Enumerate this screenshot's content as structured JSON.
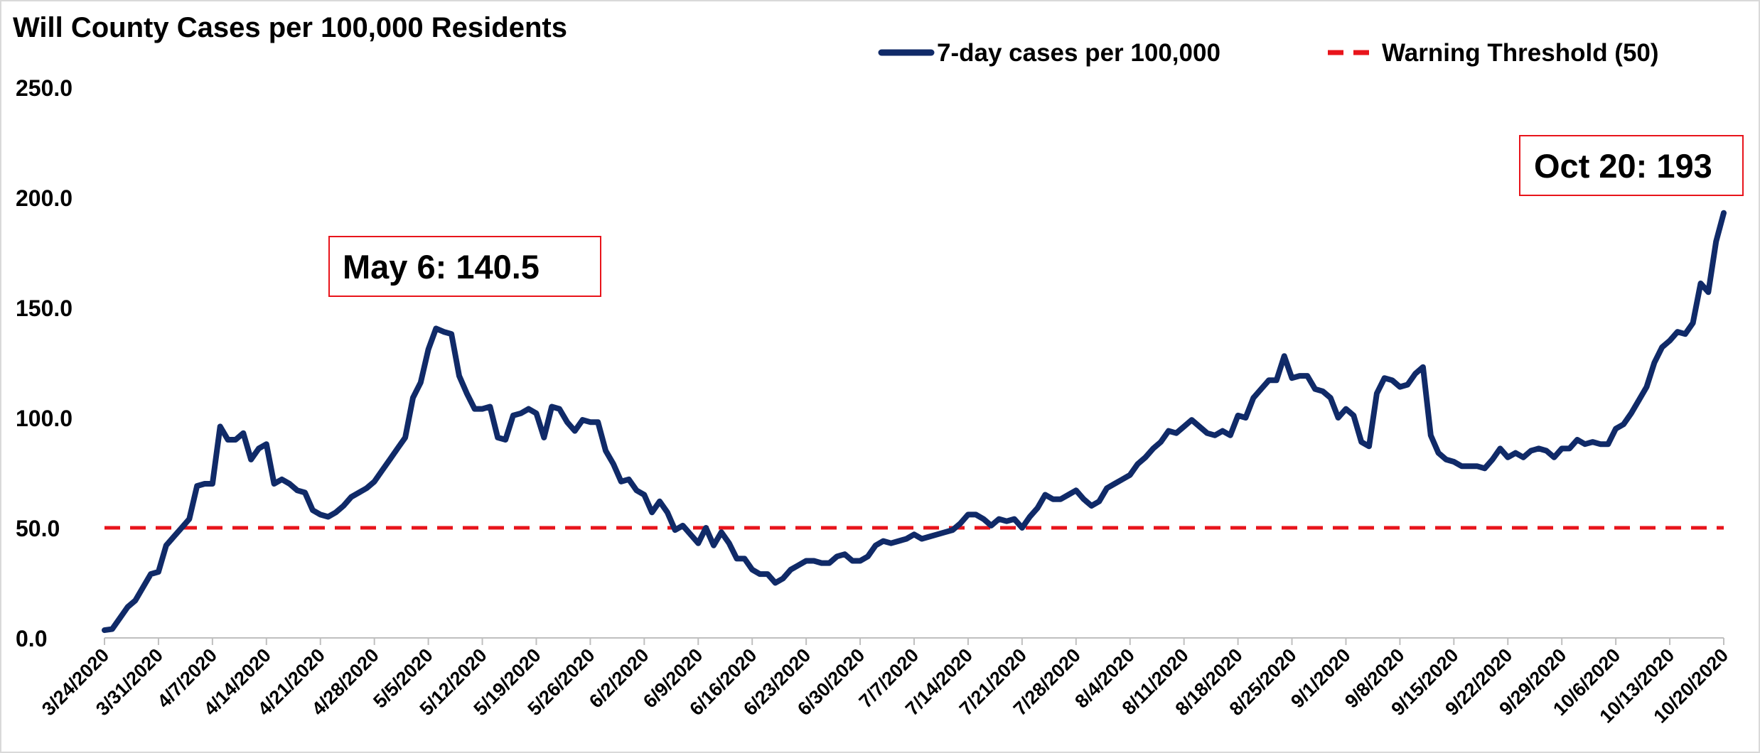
{
  "chart_data": {
    "type": "line",
    "title": "Will County Cases per 100,000 Residents",
    "categories": [
      "3/24/2020",
      null,
      null,
      null,
      null,
      null,
      null,
      "3/31/2020",
      null,
      null,
      null,
      null,
      null,
      null,
      "4/7/2020",
      null,
      null,
      null,
      null,
      null,
      null,
      "4/14/2020",
      null,
      null,
      null,
      null,
      null,
      null,
      "4/21/2020",
      null,
      null,
      null,
      null,
      null,
      null,
      "4/28/2020",
      null,
      null,
      null,
      null,
      null,
      null,
      "5/5/2020",
      null,
      null,
      null,
      null,
      null,
      null,
      "5/12/2020",
      null,
      null,
      null,
      null,
      null,
      null,
      "5/19/2020",
      null,
      null,
      null,
      null,
      null,
      null,
      "5/26/2020",
      null,
      null,
      null,
      null,
      null,
      null,
      "6/2/2020",
      null,
      null,
      null,
      null,
      null,
      null,
      "6/9/2020",
      null,
      null,
      null,
      null,
      null,
      null,
      "6/16/2020",
      null,
      null,
      null,
      null,
      null,
      null,
      "6/23/2020",
      null,
      null,
      null,
      null,
      null,
      null,
      "6/30/2020",
      null,
      null,
      null,
      null,
      null,
      null,
      "7/7/2020",
      null,
      null,
      null,
      null,
      null,
      null,
      "7/14/2020",
      null,
      null,
      null,
      null,
      null,
      null,
      "7/21/2020",
      null,
      null,
      null,
      null,
      null,
      null,
      "7/28/2020",
      null,
      null,
      null,
      null,
      null,
      null,
      "8/4/2020",
      null,
      null,
      null,
      null,
      null,
      null,
      "8/11/2020",
      null,
      null,
      null,
      null,
      null,
      null,
      "8/18/2020",
      null,
      null,
      null,
      null,
      null,
      null,
      "8/25/2020",
      null,
      null,
      null,
      null,
      null,
      null,
      "9/1/2020",
      null,
      null,
      null,
      null,
      null,
      null,
      "9/8/2020",
      null,
      null,
      null,
      null,
      null,
      null,
      "9/15/2020",
      null,
      null,
      null,
      null,
      null,
      null,
      "9/22/2020",
      null,
      null,
      null,
      null,
      null,
      null,
      "9/29/2020",
      null,
      null,
      null,
      null,
      null,
      null,
      "10/6/2020",
      null,
      null,
      null,
      null,
      null,
      null,
      "10/13/2020",
      null,
      null,
      null,
      null,
      null,
      null,
      "10/20/2020"
    ],
    "series": [
      {
        "name": "7-day cases per 100,000",
        "color": "#102a68",
        "values": [
          3.5,
          4,
          9,
          14,
          17,
          23,
          29,
          30,
          42,
          46,
          50,
          54,
          69,
          70,
          70,
          96,
          90,
          90,
          93,
          81,
          86,
          88,
          70,
          72,
          70,
          67,
          66,
          58,
          56,
          55,
          57,
          60,
          64,
          66,
          68,
          71,
          76,
          81,
          86,
          91,
          109,
          116,
          131,
          140.5,
          139,
          138,
          119,
          111,
          104,
          104,
          105,
          91,
          90,
          101,
          102,
          104,
          102,
          91,
          105,
          104,
          98,
          94,
          99,
          98,
          98,
          85,
          79,
          71,
          72,
          67,
          65,
          57,
          62,
          57,
          49,
          51,
          47,
          43,
          50,
          42,
          48,
          43,
          36,
          36,
          31,
          29,
          29,
          25,
          27,
          31,
          33,
          35,
          35,
          34,
          34,
          37,
          38,
          35,
          35,
          37,
          42,
          44,
          43,
          44,
          45,
          47,
          45,
          46,
          47,
          48,
          49,
          52,
          56,
          56,
          54,
          51,
          54,
          53,
          54,
          50,
          55,
          59,
          65,
          63,
          63,
          65,
          67,
          63,
          60,
          62,
          68,
          70,
          72,
          74,
          79,
          82,
          86,
          89,
          94,
          93,
          96,
          99,
          96,
          93,
          92,
          94,
          92,
          101,
          100,
          109,
          113,
          117,
          117,
          128,
          118,
          119,
          119,
          113,
          112,
          109,
          100,
          104,
          101,
          89,
          87,
          111,
          118,
          117,
          114,
          115,
          120,
          123,
          92,
          84,
          81,
          80,
          78,
          78,
          78,
          77,
          81,
          86,
          82,
          84,
          82,
          85,
          86,
          85,
          82,
          86,
          86,
          90,
          88,
          89,
          88,
          88,
          95,
          97,
          102,
          108,
          114,
          125,
          132,
          135,
          139,
          138,
          143,
          161,
          157,
          180,
          193
        ]
      }
    ],
    "threshold": {
      "name": "Warning Threshold (50)",
      "value": 50,
      "color": "#e8141b"
    },
    "annotations": [
      {
        "text": "May 6: 140.5",
        "color": "#e8141b"
      },
      {
        "text": "Oct 20: 193",
        "color": "#e8141b"
      }
    ],
    "ylim": [
      0,
      250
    ],
    "yticks": [
      {
        "value": 0,
        "label": "0.0"
      },
      {
        "value": 50,
        "label": "50.0"
      },
      {
        "value": 100,
        "label": "100.0"
      },
      {
        "value": 150,
        "label": "150.0"
      },
      {
        "value": 200,
        "label": "200.0"
      },
      {
        "value": 250,
        "label": "250.0"
      }
    ],
    "grid": false
  }
}
